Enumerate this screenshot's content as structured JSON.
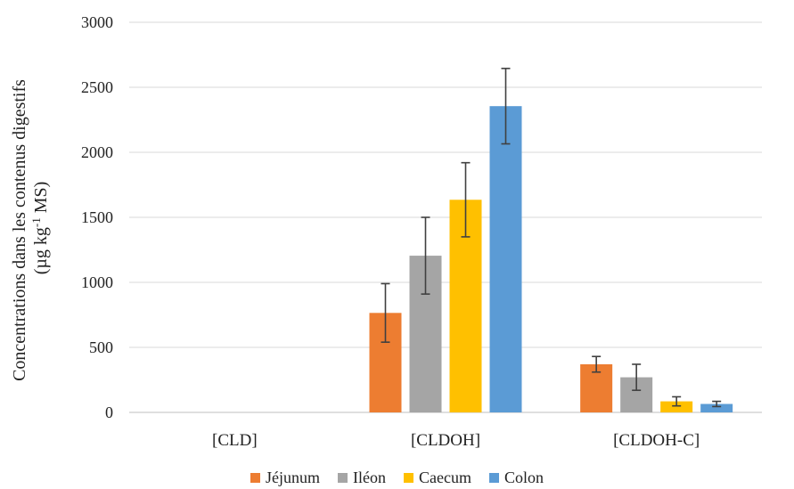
{
  "chart_data": {
    "type": "bar",
    "categories": [
      "[CLD]",
      "[CLDOH]",
      "[CLDOH-C]"
    ],
    "ylabel_line1": "Concentrations dans les contenus digestifs",
    "ylabel_line2_prefix": "(µg kg",
    "ylabel_line2_sup": "-1",
    "ylabel_line2_suffix": " MS)",
    "ylim": [
      0,
      3000
    ],
    "yticks": [
      0,
      500,
      1000,
      1500,
      2000,
      2500,
      3000
    ],
    "grid": true,
    "legend_position": "bottom",
    "series": [
      {
        "name": "Jéjunum",
        "color": "#ED7D31",
        "values": [
          0,
          765,
          370
        ],
        "errors": [
          0,
          225,
          60
        ]
      },
      {
        "name": "Iléon",
        "color": "#A5A5A5",
        "values": [
          0,
          1205,
          270
        ],
        "errors": [
          0,
          295,
          100
        ]
      },
      {
        "name": "Caecum",
        "color": "#FFC000",
        "values": [
          0,
          1635,
          85
        ],
        "errors": [
          0,
          285,
          35
        ]
      },
      {
        "name": "Colon",
        "color": "#5B9BD5",
        "values": [
          0,
          2355,
          65
        ],
        "errors": [
          0,
          290,
          20
        ]
      }
    ]
  }
}
